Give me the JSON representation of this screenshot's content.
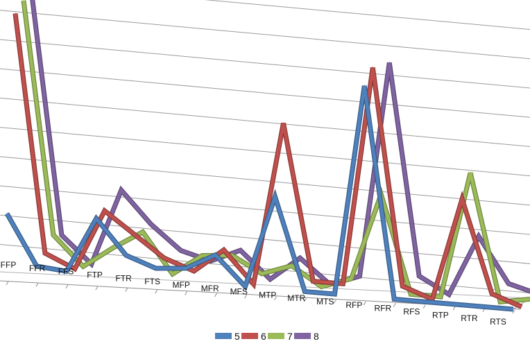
{
  "chart_data": {
    "type": "line",
    "title": "",
    "xlabel": "",
    "ylabel": "",
    "ylim": [
      0,
      10
    ],
    "grid": true,
    "legend_position": "bottom",
    "categories": [
      "FFP",
      "FFR",
      "FFS",
      "FTP",
      "FTR",
      "FTS",
      "MFP",
      "MFR",
      "MFS",
      "MTP",
      "MTR",
      "MTS",
      "RFP",
      "RFR",
      "RFS",
      "RTP",
      "RTR",
      "RTS"
    ],
    "series": [
      {
        "name": "5",
        "color": "#4f81bd",
        "values": [
          2.0,
          0.1,
          0.0,
          2.1,
          0.8,
          0.4,
          0.5,
          1.1,
          0.0,
          3.5,
          0.0,
          0.0,
          8.0,
          0.0,
          0.0,
          0.0,
          0.0,
          0.0
        ]
      },
      {
        "name": "6",
        "color": "#c0504d",
        "values": [
          9.5,
          0.5,
          0.0,
          2.3,
          1.5,
          0.7,
          0.3,
          1.2,
          0.0,
          6.2,
          0.3,
          0.3,
          8.6,
          0.4,
          0.0,
          3.9,
          0.4,
          0.0
        ]
      },
      {
        "name": "7",
        "color": "#9bbb59",
        "values": [
          9.9,
          1.1,
          0.0,
          0.8,
          1.5,
          0.0,
          0.8,
          0.9,
          0.3,
          0.7,
          0.0,
          0.4,
          3.7,
          0.0,
          0.0,
          4.8,
          0.0,
          0.2
        ]
      },
      {
        "name": "8",
        "color": "#8064a2",
        "values": [
          10.0,
          1.0,
          0.0,
          2.9,
          1.7,
          0.8,
          0.5,
          1.0,
          0.0,
          0.9,
          0.0,
          0.4,
          8.6,
          0.6,
          0.0,
          2.3,
          0.6,
          0.3
        ]
      }
    ]
  }
}
